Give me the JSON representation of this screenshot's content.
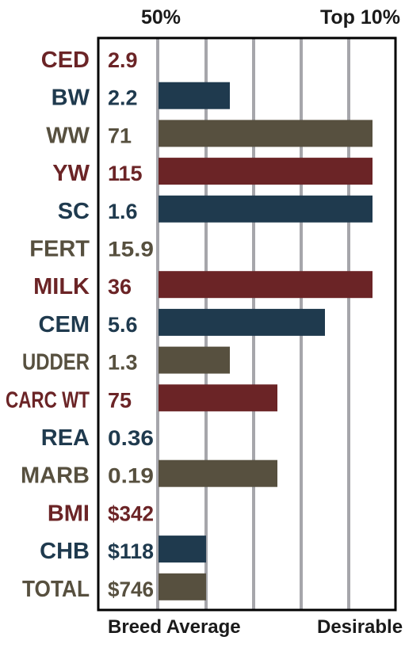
{
  "header": {
    "left_label": "50%",
    "right_label": "Top 10%"
  },
  "footer": {
    "left_label": "Breed Average",
    "right_label": "Desirable"
  },
  "colors": {
    "red": "#6b2426",
    "navy": "#1f3a4e",
    "taupe": "#57503f",
    "grid": "#a6a6ab",
    "frame": "#000000"
  },
  "chart_data": {
    "type": "bar",
    "orientation": "horizontal",
    "xlim": [
      0,
      6
    ],
    "grid": true,
    "tick_labels": {
      "left": "50%",
      "right": "Top 10%"
    },
    "axis_labels": {
      "left": "Breed Average",
      "right": "Desirable"
    },
    "rows": [
      {
        "trait": "CED",
        "epd": "2.9",
        "bar": 0,
        "color": "red"
      },
      {
        "trait": "BW",
        "epd": "2.2",
        "bar": 1.5,
        "color": "navy"
      },
      {
        "trait": "WW",
        "epd": "71",
        "bar": 4.5,
        "color": "taupe"
      },
      {
        "trait": "YW",
        "epd": "115",
        "bar": 4.5,
        "color": "red"
      },
      {
        "trait": "SC",
        "epd": "1.6",
        "bar": 4.5,
        "color": "navy"
      },
      {
        "trait": "FERT",
        "epd": "15.9",
        "bar": 0,
        "color": "taupe"
      },
      {
        "trait": "MILK",
        "epd": "36",
        "bar": 4.5,
        "color": "red"
      },
      {
        "trait": "CEM",
        "epd": "5.6",
        "bar": 3.5,
        "color": "navy"
      },
      {
        "trait": "UDDER",
        "epd": "1.3",
        "bar": 1.5,
        "color": "taupe"
      },
      {
        "trait": "CARC WT",
        "epd": "75",
        "bar": 2.5,
        "color": "red"
      },
      {
        "trait": "REA",
        "epd": "0.36",
        "bar": 0,
        "color": "navy"
      },
      {
        "trait": "MARB",
        "epd": "0.19",
        "bar": 2.5,
        "color": "taupe"
      },
      {
        "trait": "BMI",
        "epd": "$342",
        "bar": 0,
        "color": "red"
      },
      {
        "trait": "CHB",
        "epd": "$118",
        "bar": 1,
        "color": "navy"
      },
      {
        "trait": "TOTAL",
        "epd": "$746",
        "bar": 1,
        "color": "taupe"
      }
    ]
  }
}
